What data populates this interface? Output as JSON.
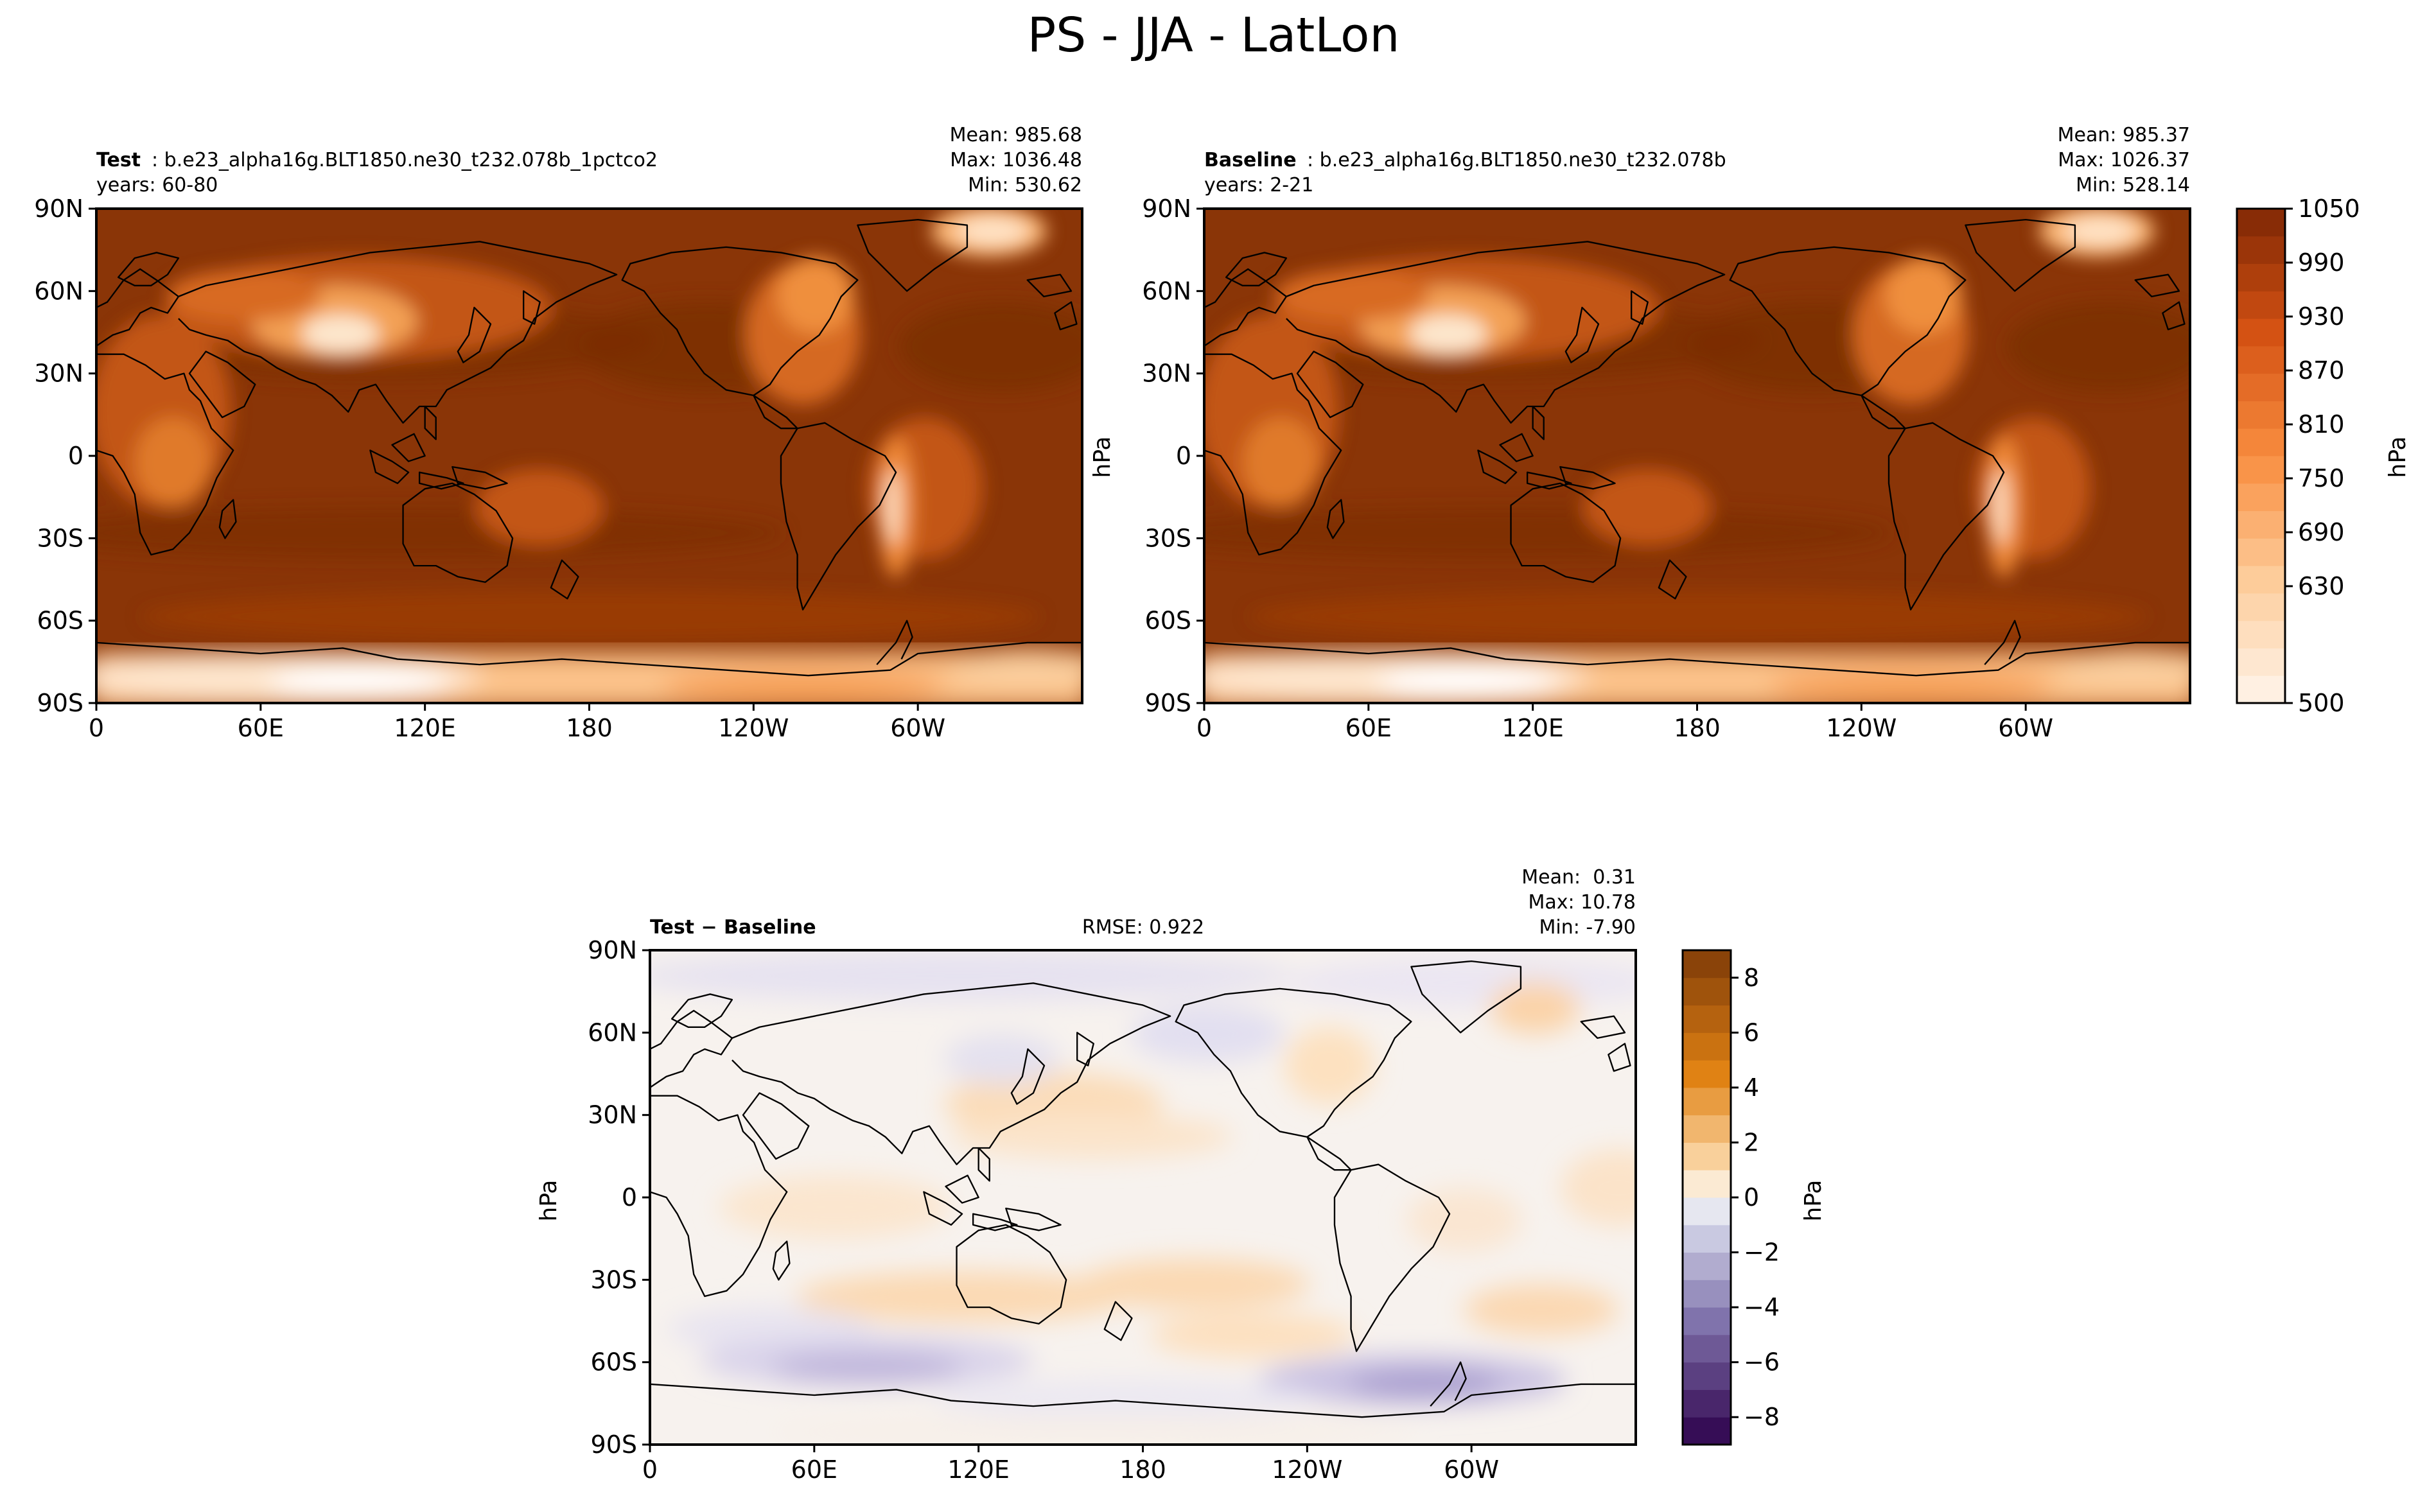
{
  "figure": {
    "title": "PS - JJA - LatLon"
  },
  "chart_data": [
    {
      "type": "heatmap",
      "panel": "test",
      "name_label": "Test",
      "case_name": "b.e23_alpha16g.BLT1850.ne30_t232.078b_1pctco2",
      "years_text": "years: 60-80",
      "stats": [
        "Mean: 985.68",
        "Max: 1036.48",
        "Min: 530.62"
      ],
      "x_ticks": [
        "0",
        "60E",
        "120E",
        "180",
        "120W",
        "60W"
      ],
      "y_ticks": [
        "90N",
        "60N",
        "30N",
        "0",
        "30S",
        "60S",
        "90S"
      ],
      "xlim": [
        0,
        360
      ],
      "ylim": [
        -90,
        90
      ],
      "colormap": "Oranges",
      "units": "hPa"
    },
    {
      "type": "heatmap",
      "panel": "baseline",
      "name_label": "Baseline",
      "case_name": "b.e23_alpha16g.BLT1850.ne30_t232.078b",
      "years_text": "years: 2-21",
      "stats": [
        "Mean: 985.37",
        "Max: 1026.37",
        "Min: 528.14"
      ],
      "x_ticks": [
        "0",
        "60E",
        "120E",
        "180",
        "120W",
        "60W"
      ],
      "y_ticks": [
        "90N",
        "60N",
        "30N",
        "0",
        "30S",
        "60S",
        "90S"
      ],
      "xlim": [
        0,
        360
      ],
      "ylim": [
        -90,
        90
      ],
      "ylabel": "hPa",
      "colormap": "Oranges",
      "units": "hPa",
      "colorbar": {
        "label": "hPa",
        "ticks": [
          "1050",
          "990",
          "930",
          "870",
          "810",
          "750",
          "690",
          "630",
          "500"
        ],
        "range": [
          500,
          1050
        ],
        "levels": 18
      }
    },
    {
      "type": "heatmap",
      "panel": "difference",
      "name_label": "Test − Baseline",
      "rmse": "RMSE: 0.922",
      "stats": [
        "Mean:  0.31",
        "Max: 10.78",
        "Min: -7.90"
      ],
      "x_ticks": [
        "0",
        "60E",
        "120E",
        "180",
        "120W",
        "60W"
      ],
      "y_ticks": [
        "90N",
        "60N",
        "30N",
        "0",
        "30S",
        "60S",
        "90S"
      ],
      "xlim": [
        0,
        360
      ],
      "ylim": [
        -90,
        90
      ],
      "ylabel": "hPa",
      "colormap": "PuOr_r",
      "units": "hPa",
      "colorbar": {
        "label": "hPa",
        "ticks": [
          "8",
          "6",
          "4",
          "2",
          "0",
          "−2",
          "−4",
          "−6",
          "−8"
        ],
        "range": [
          -9,
          9
        ],
        "levels": 18
      }
    }
  ],
  "colors": {
    "ocean_high": "#8a3507",
    "land_low": "#fff5eb",
    "diff_pos": "#e08214",
    "diff_neg": "#5e3c99",
    "diff_zero": "#f7f7f7"
  }
}
